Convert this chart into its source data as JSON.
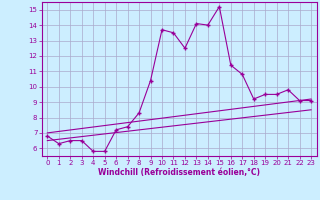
{
  "title": "",
  "xlabel": "Windchill (Refroidissement éolien,°C)",
  "ylabel": "",
  "background_color": "#cceeff",
  "line_color": "#990099",
  "grid_color": "#aaaacc",
  "xlim": [
    -0.5,
    23.5
  ],
  "ylim": [
    5.5,
    15.5
  ],
  "yticks": [
    6,
    7,
    8,
    9,
    10,
    11,
    12,
    13,
    14,
    15
  ],
  "xticks": [
    0,
    1,
    2,
    3,
    4,
    5,
    6,
    7,
    8,
    9,
    10,
    11,
    12,
    13,
    14,
    15,
    16,
    17,
    18,
    19,
    20,
    21,
    22,
    23
  ],
  "main_x": [
    0,
    1,
    2,
    3,
    4,
    5,
    6,
    7,
    8,
    9,
    10,
    11,
    12,
    13,
    14,
    15,
    16,
    17,
    18,
    19,
    20,
    21,
    22,
    23
  ],
  "main_y": [
    6.8,
    6.3,
    6.5,
    6.5,
    5.8,
    5.8,
    7.2,
    7.4,
    8.3,
    10.4,
    13.7,
    13.5,
    12.5,
    14.1,
    14.0,
    15.2,
    11.4,
    10.8,
    9.2,
    9.5,
    9.5,
    9.8,
    9.1,
    9.1
  ],
  "line1_x": [
    0,
    23
  ],
  "line1_y": [
    6.5,
    8.5
  ],
  "line2_x": [
    0,
    23
  ],
  "line2_y": [
    7.0,
    9.2
  ]
}
